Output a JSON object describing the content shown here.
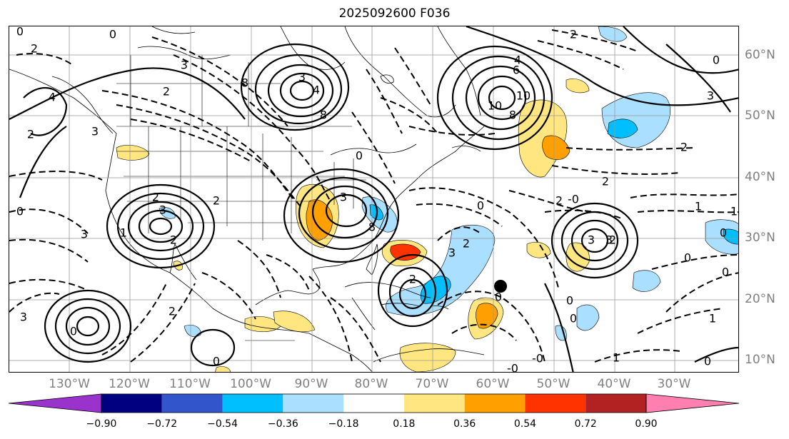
{
  "title": "2025092600 F036",
  "map": {
    "projection": "plate-carree",
    "lon_labels": [
      "130°W",
      "120°W",
      "110°W",
      "100°W",
      "90°W",
      "80°W",
      "70°W",
      "60°W",
      "50°W",
      "40°W",
      "30°W"
    ],
    "lat_labels": [
      "60°N",
      "50°N",
      "40°N",
      "30°N",
      "20°N",
      "10°N"
    ],
    "contour_labels": [
      "0",
      "0",
      "2",
      "3",
      "2",
      "4",
      "3",
      "2",
      "4",
      "3",
      "8",
      "10",
      "8",
      "2",
      "6",
      "4",
      "10",
      "8",
      "3",
      "2",
      "2",
      "0",
      "3",
      "2",
      "3",
      "1",
      "0",
      "3",
      "2",
      "8",
      "3",
      "3",
      "2",
      "0",
      "1",
      "2",
      "2",
      "3",
      "0",
      "1",
      "0",
      "-0",
      "2",
      "0",
      "0",
      "-0",
      "3",
      "2",
      "0",
      "1",
      "0",
      "-0",
      "2",
      "0",
      "0",
      "0",
      "1",
      "0"
    ],
    "storm_marker": "black-dot"
  },
  "colorbar": {
    "ticks": [
      "−0.90",
      "−0.72",
      "−0.54",
      "−0.36",
      "−0.18",
      "0.18",
      "0.36",
      "0.54",
      "0.72",
      "0.90"
    ],
    "colors": [
      "#9933cc",
      "#000080",
      "#3355cc",
      "#00bfff",
      "#aadfff",
      "#ffffff",
      "#ffe680",
      "#ffa000",
      "#ff3300",
      "#b22222",
      "#ff80b0"
    ],
    "extend": "both"
  }
}
